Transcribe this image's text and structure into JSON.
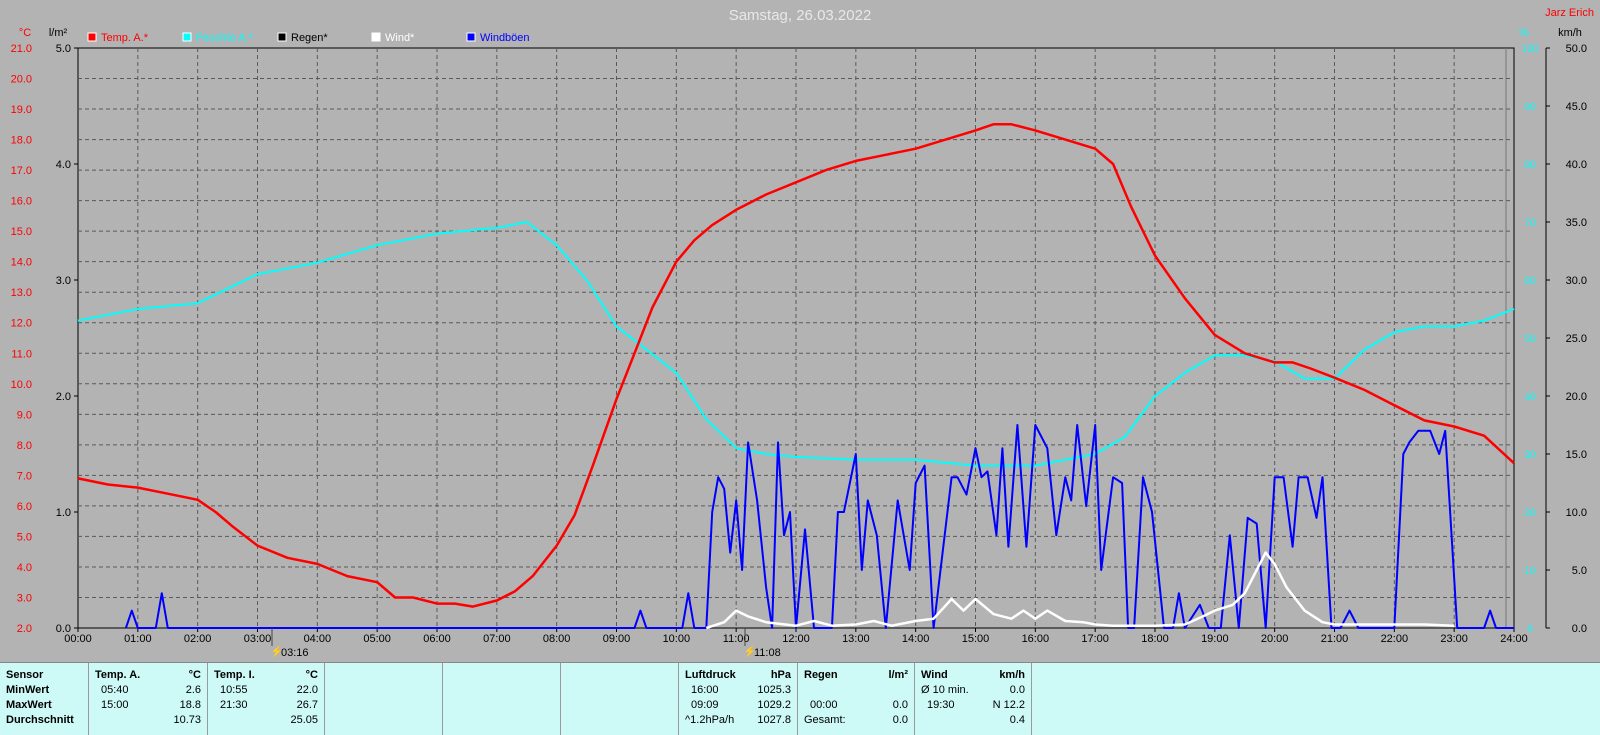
{
  "title": "Samstag, 26.03.2022",
  "author": "Jarz Erich",
  "units": {
    "temp": "°C",
    "rain": "l/m²",
    "hum": "%",
    "wind": "km/h"
  },
  "legend": [
    {
      "name": "Temp. A.*",
      "color": "#ff0000"
    },
    {
      "name": "Feuchte A.*",
      "color": "#00ffff"
    },
    {
      "name": "Regen*",
      "color": "#000000"
    },
    {
      "name": "Wind*",
      "color": "#ffffff"
    },
    {
      "name": "Windböen",
      "color": "#0000ff"
    }
  ],
  "markers": [
    "03:16",
    "11:08"
  ],
  "chart_data": {
    "type": "line",
    "title": "Samstag, 26.03.2022",
    "x_labels": [
      "00:00",
      "01:00",
      "02:00",
      "03:00",
      "04:00",
      "05:00",
      "06:00",
      "07:00",
      "08:00",
      "09:00",
      "10:00",
      "11:00",
      "12:00",
      "13:00",
      "14:00",
      "15:00",
      "16:00",
      "17:00",
      "18:00",
      "19:00",
      "20:00",
      "21:00",
      "22:00",
      "23:00",
      "24:00"
    ],
    "axes": {
      "temp": {
        "range": [
          2.0,
          21.0
        ],
        "ticks": [
          "2.0",
          "3.0",
          "4.0",
          "5.0",
          "6.0",
          "7.0",
          "8.0",
          "9.0",
          "10.0",
          "11.0",
          "12.0",
          "13.0",
          "14.0",
          "15.0",
          "16.0",
          "17.0",
          "18.0",
          "19.0",
          "20.0",
          "21.0"
        ]
      },
      "rain": {
        "range": [
          0.0,
          5.0
        ],
        "ticks": [
          "0.0",
          "1.0",
          "2.0",
          "3.0",
          "4.0",
          "5.0"
        ]
      },
      "hum": {
        "range": [
          0,
          100
        ],
        "ticks": [
          "0",
          "10",
          "20",
          "30",
          "40",
          "50",
          "60",
          "70",
          "80",
          "90",
          "100"
        ]
      },
      "wind": {
        "range": [
          0.0,
          50.0
        ],
        "ticks": [
          "0.0",
          "5.0",
          "10.0",
          "15.0",
          "20.0",
          "25.0",
          "30.0",
          "35.0",
          "40.0",
          "45.0",
          "50.0"
        ]
      }
    },
    "grid": true,
    "series": [
      {
        "name": "Temp. A.*",
        "axis": "temp",
        "color": "#ff0000",
        "points": [
          [
            0,
            6.9
          ],
          [
            0.5,
            6.7
          ],
          [
            1,
            6.6
          ],
          [
            1.5,
            6.4
          ],
          [
            2,
            6.2
          ],
          [
            2.3,
            5.8
          ],
          [
            2.6,
            5.3
          ],
          [
            3,
            4.7
          ],
          [
            3.5,
            4.3
          ],
          [
            4,
            4.1
          ],
          [
            4.5,
            3.7
          ],
          [
            5,
            3.5
          ],
          [
            5.3,
            3.0
          ],
          [
            5.6,
            3.0
          ],
          [
            6,
            2.8
          ],
          [
            6.3,
            2.8
          ],
          [
            6.6,
            2.7
          ],
          [
            7,
            2.9
          ],
          [
            7.3,
            3.2
          ],
          [
            7.6,
            3.7
          ],
          [
            8,
            4.7
          ],
          [
            8.3,
            5.7
          ],
          [
            8.6,
            7.3
          ],
          [
            9,
            9.5
          ],
          [
            9.3,
            11.0
          ],
          [
            9.6,
            12.5
          ],
          [
            10,
            14.0
          ],
          [
            10.3,
            14.7
          ],
          [
            10.6,
            15.2
          ],
          [
            11,
            15.7
          ],
          [
            11.5,
            16.2
          ],
          [
            12,
            16.6
          ],
          [
            12.5,
            17.0
          ],
          [
            13,
            17.3
          ],
          [
            13.5,
            17.5
          ],
          [
            14,
            17.7
          ],
          [
            14.5,
            18.0
          ],
          [
            15,
            18.3
          ],
          [
            15.3,
            18.5
          ],
          [
            15.6,
            18.5
          ],
          [
            16,
            18.3
          ],
          [
            16.5,
            18.0
          ],
          [
            17,
            17.7
          ],
          [
            17.3,
            17.2
          ],
          [
            17.6,
            15.8
          ],
          [
            18,
            14.2
          ],
          [
            18.5,
            12.8
          ],
          [
            19,
            11.6
          ],
          [
            19.5,
            11.0
          ],
          [
            20,
            10.7
          ],
          [
            20.3,
            10.7
          ],
          [
            20.6,
            10.5
          ],
          [
            21,
            10.2
          ],
          [
            21.5,
            9.8
          ],
          [
            22,
            9.3
          ],
          [
            22.5,
            8.8
          ],
          [
            23,
            8.6
          ],
          [
            23.5,
            8.3
          ],
          [
            24,
            7.4
          ]
        ]
      },
      {
        "name": "Feuchte A.*",
        "axis": "hum",
        "color": "#00ffff",
        "points": [
          [
            0,
            53
          ],
          [
            1,
            55
          ],
          [
            2,
            56
          ],
          [
            3,
            61
          ],
          [
            4,
            63
          ],
          [
            5,
            66
          ],
          [
            6,
            68
          ],
          [
            7,
            69
          ],
          [
            7.5,
            70
          ],
          [
            8,
            66
          ],
          [
            8.5,
            60
          ],
          [
            9,
            52
          ],
          [
            9.5,
            48
          ],
          [
            10,
            44
          ],
          [
            10.5,
            36
          ],
          [
            11,
            31
          ],
          [
            11.5,
            30
          ],
          [
            12,
            29.5
          ],
          [
            13,
            29
          ],
          [
            14,
            29
          ],
          [
            15,
            28
          ],
          [
            16,
            28
          ],
          [
            17,
            30
          ],
          [
            17.5,
            33
          ],
          [
            18,
            40
          ],
          [
            18.5,
            44
          ],
          [
            19,
            47
          ],
          [
            19.5,
            47
          ],
          [
            20,
            46
          ],
          [
            20.5,
            43
          ],
          [
            21,
            43
          ],
          [
            21.5,
            48
          ],
          [
            22,
            51
          ],
          [
            22.5,
            52
          ],
          [
            23,
            52
          ],
          [
            23.5,
            53
          ],
          [
            24,
            55
          ]
        ]
      },
      {
        "name": "Wind*",
        "axis": "wind",
        "color": "#ffffff",
        "points": [
          [
            10.5,
            0
          ],
          [
            10.8,
            0.5
          ],
          [
            11,
            1.5
          ],
          [
            11.2,
            1.0
          ],
          [
            11.5,
            0.5
          ],
          [
            12,
            0.2
          ],
          [
            12.3,
            0.6
          ],
          [
            12.6,
            0.2
          ],
          [
            13,
            0.3
          ],
          [
            13.3,
            0.6
          ],
          [
            13.6,
            0.2
          ],
          [
            14,
            0.6
          ],
          [
            14.3,
            0.8
          ],
          [
            14.6,
            2.5
          ],
          [
            14.8,
            1.5
          ],
          [
            15,
            2.5
          ],
          [
            15.3,
            1.2
          ],
          [
            15.6,
            0.8
          ],
          [
            15.8,
            1.5
          ],
          [
            16,
            0.8
          ],
          [
            16.2,
            1.5
          ],
          [
            16.5,
            0.6
          ],
          [
            16.8,
            0.5
          ],
          [
            17,
            0.3
          ],
          [
            17.3,
            0.2
          ],
          [
            18,
            0.2
          ],
          [
            18.5,
            0.3
          ],
          [
            18.8,
            1.0
          ],
          [
            19,
            1.5
          ],
          [
            19.3,
            2.0
          ],
          [
            19.5,
            3.0
          ],
          [
            19.7,
            5.0
          ],
          [
            19.85,
            6.5
          ],
          [
            20,
            5.5
          ],
          [
            20.2,
            3.5
          ],
          [
            20.5,
            1.5
          ],
          [
            20.8,
            0.5
          ],
          [
            21,
            0.3
          ],
          [
            22.5,
            0.3
          ],
          [
            23,
            0.2
          ]
        ]
      },
      {
        "name": "Windböen",
        "axis": "wind",
        "color": "#0000ff",
        "points": [
          [
            0.8,
            0
          ],
          [
            0.9,
            1.5
          ],
          [
            1.0,
            0
          ],
          [
            1.3,
            0
          ],
          [
            1.4,
            3.0
          ],
          [
            1.5,
            0
          ],
          [
            9.3,
            0
          ],
          [
            9.4,
            1.5
          ],
          [
            9.5,
            0
          ],
          [
            10.1,
            0
          ],
          [
            10.2,
            3.0
          ],
          [
            10.3,
            0
          ],
          [
            10.5,
            0
          ],
          [
            10.6,
            10
          ],
          [
            10.7,
            13
          ],
          [
            10.8,
            12
          ],
          [
            10.9,
            6.5
          ],
          [
            11,
            11
          ],
          [
            11.1,
            5
          ],
          [
            11.2,
            16
          ],
          [
            11.35,
            11
          ],
          [
            11.5,
            3.5
          ],
          [
            11.6,
            0
          ],
          [
            11.7,
            16
          ],
          [
            11.8,
            8
          ],
          [
            11.9,
            10
          ],
          [
            12.0,
            0
          ],
          [
            12.15,
            8.5
          ],
          [
            12.3,
            0
          ],
          [
            12.6,
            0
          ],
          [
            12.7,
            10
          ],
          [
            12.8,
            10
          ],
          [
            13.0,
            15
          ],
          [
            13.1,
            5
          ],
          [
            13.2,
            11
          ],
          [
            13.35,
            8
          ],
          [
            13.5,
            0
          ],
          [
            13.7,
            11
          ],
          [
            13.9,
            5
          ],
          [
            14.0,
            12.5
          ],
          [
            14.15,
            14
          ],
          [
            14.3,
            0
          ],
          [
            14.6,
            13
          ],
          [
            14.7,
            13
          ],
          [
            14.85,
            11.5
          ],
          [
            15.0,
            15.5
          ],
          [
            15.1,
            13
          ],
          [
            15.2,
            13.5
          ],
          [
            15.35,
            8
          ],
          [
            15.45,
            15.5
          ],
          [
            15.55,
            7
          ],
          [
            15.7,
            17.5
          ],
          [
            15.85,
            7
          ],
          [
            16.0,
            17.5
          ],
          [
            16.2,
            15.5
          ],
          [
            16.35,
            8
          ],
          [
            16.5,
            13
          ],
          [
            16.6,
            11
          ],
          [
            16.7,
            17.5
          ],
          [
            16.85,
            10.5
          ],
          [
            17.0,
            17.5
          ],
          [
            17.1,
            5
          ],
          [
            17.3,
            13
          ],
          [
            17.45,
            12.5
          ],
          [
            17.55,
            0
          ],
          [
            17.65,
            0
          ],
          [
            17.8,
            13
          ],
          [
            17.95,
            10
          ],
          [
            18.15,
            0
          ],
          [
            18.3,
            0
          ],
          [
            18.4,
            3
          ],
          [
            18.5,
            0
          ],
          [
            18.75,
            2
          ],
          [
            18.9,
            0
          ],
          [
            19.1,
            0
          ],
          [
            19.25,
            8
          ],
          [
            19.4,
            0
          ],
          [
            19.55,
            9.5
          ],
          [
            19.7,
            9
          ],
          [
            19.85,
            0
          ],
          [
            20.0,
            13
          ],
          [
            20.15,
            13
          ],
          [
            20.3,
            7
          ],
          [
            20.4,
            13
          ],
          [
            20.55,
            13
          ],
          [
            20.7,
            9.5
          ],
          [
            20.8,
            13
          ],
          [
            20.95,
            0
          ],
          [
            21.1,
            0
          ],
          [
            21.25,
            1.5
          ],
          [
            21.4,
            0
          ],
          [
            22.0,
            0
          ],
          [
            22.15,
            15
          ],
          [
            22.25,
            16
          ],
          [
            22.4,
            17
          ],
          [
            22.5,
            17
          ],
          [
            22.6,
            17
          ],
          [
            22.75,
            15
          ],
          [
            22.85,
            17
          ],
          [
            23.05,
            0
          ],
          [
            23.5,
            0
          ],
          [
            23.6,
            1.5
          ],
          [
            23.7,
            0
          ],
          [
            24.0,
            0
          ]
        ]
      },
      {
        "name": "Regen*",
        "axis": "rain",
        "color": "#000000",
        "points": []
      }
    ]
  },
  "table": {
    "sensor": {
      "header": "Sensor",
      "rows": [
        "MinWert",
        "MaxWert",
        "Durchschnitt"
      ]
    },
    "temp_a": {
      "header": "Temp. A.",
      "unit": "°C",
      "rows": [
        [
          "05:40",
          "2.6"
        ],
        [
          "15:00",
          "18.8"
        ],
        [
          "",
          "10.73"
        ]
      ]
    },
    "temp_i": {
      "header": "Temp. I.",
      "unit": "°C",
      "rows": [
        [
          "10:55",
          "22.0"
        ],
        [
          "21:30",
          "26.7"
        ],
        [
          "",
          "25.05"
        ]
      ]
    },
    "luftdruck": {
      "header": "Luftdruck",
      "unit": "hPa",
      "rows": [
        [
          "16:00",
          "1025.3"
        ],
        [
          "09:09",
          "1029.2"
        ],
        [
          "^1.2hPa/h",
          "1027.8"
        ]
      ]
    },
    "regen": {
      "header": "Regen",
      "unit": "l/m²",
      "rows": [
        [
          "",
          ""
        ],
        [
          "00:00",
          "0.0"
        ],
        [
          "Gesamt:",
          "0.0"
        ]
      ]
    },
    "wind": {
      "header": "Wind",
      "unit": "km/h",
      "rows": [
        [
          "Ø 10 min.",
          "0.0"
        ],
        [
          "19:30",
          "N 12.2"
        ],
        [
          "",
          "0.4"
        ]
      ]
    }
  }
}
